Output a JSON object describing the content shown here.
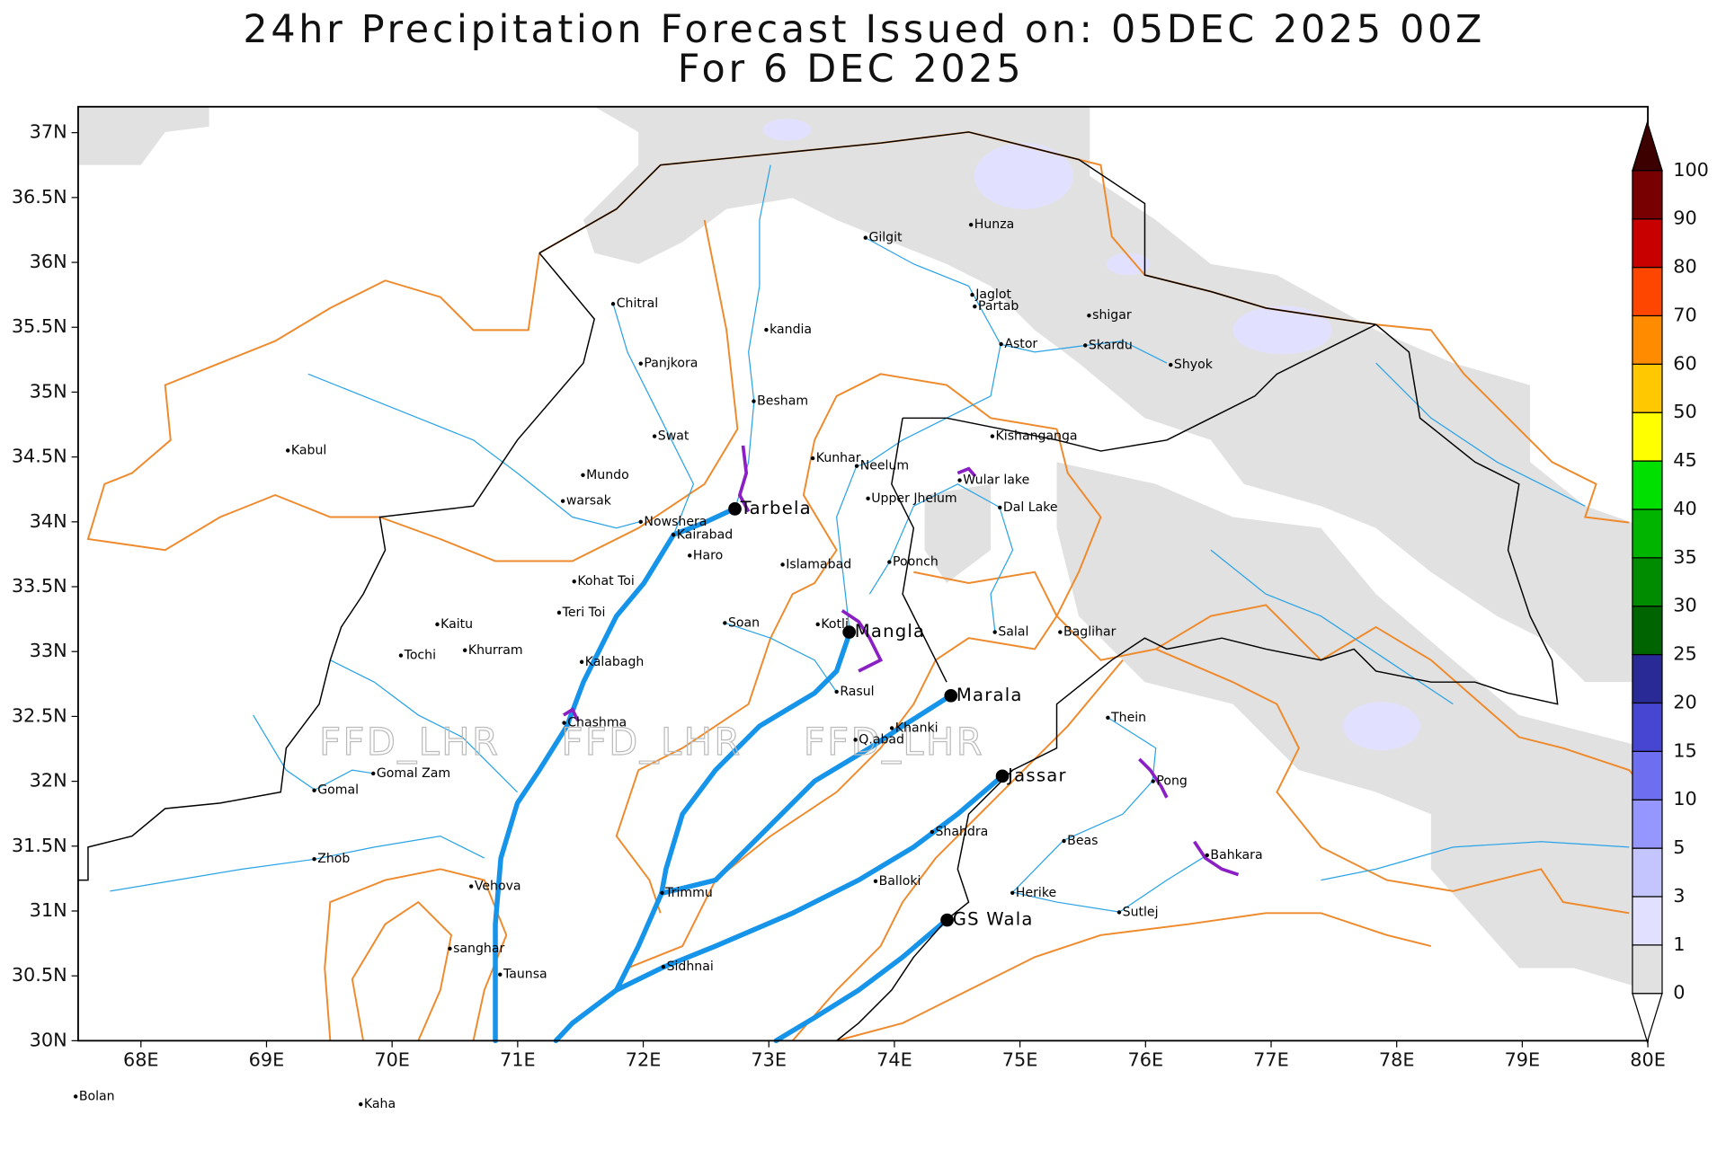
{
  "title": "24hr Precipitation Forecast Issued on:  05DEC 2025 00Z",
  "subtitle": "For 6 DEC 2025",
  "watermark": "FFD_LHR",
  "map": {
    "lonlim": [
      67.5,
      80
    ],
    "latlim": [
      30,
      37.2
    ],
    "lon_ticks": [
      {
        "value": 68,
        "label": "68E"
      },
      {
        "value": 69,
        "label": "69E"
      },
      {
        "value": 70,
        "label": "70E"
      },
      {
        "value": 71,
        "label": "71E"
      },
      {
        "value": 72,
        "label": "72E"
      },
      {
        "value": 73,
        "label": "73E"
      },
      {
        "value": 74,
        "label": "74E"
      },
      {
        "value": 75,
        "label": "75E"
      },
      {
        "value": 76,
        "label": "76E"
      },
      {
        "value": 77,
        "label": "77E"
      },
      {
        "value": 78,
        "label": "78E"
      },
      {
        "value": 79,
        "label": "79E"
      },
      {
        "value": 80,
        "label": "80E"
      }
    ],
    "lat_ticks": [
      {
        "value": 30,
        "label": "30N"
      },
      {
        "value": 30.5,
        "label": "30.5N"
      },
      {
        "value": 31,
        "label": "31N"
      },
      {
        "value": 31.5,
        "label": "31.5N"
      },
      {
        "value": 32,
        "label": "32N"
      },
      {
        "value": 32.5,
        "label": "32.5N"
      },
      {
        "value": 33,
        "label": "33N"
      },
      {
        "value": 33.5,
        "label": "33.5N"
      },
      {
        "value": 34,
        "label": "34N"
      },
      {
        "value": 34.5,
        "label": "34.5N"
      },
      {
        "value": 35,
        "label": "35N"
      },
      {
        "value": 35.5,
        "label": "35.5N"
      },
      {
        "value": 36,
        "label": "36N"
      },
      {
        "value": 36.5,
        "label": "36.5N"
      },
      {
        "value": 37,
        "label": "37N"
      }
    ]
  },
  "colorbar": {
    "levels": [
      0,
      1,
      3,
      5,
      10,
      15,
      20,
      25,
      30,
      35,
      40,
      45,
      50,
      60,
      70,
      80,
      90,
      100
    ],
    "colors": [
      "#ffffff",
      "#e1e1e1",
      "#e1e1ff",
      "#c4c4ff",
      "#9696ff",
      "#6e6ef0",
      "#4646d2",
      "#2a2a96",
      "#006400",
      "#008c00",
      "#00b400",
      "#00e000",
      "#ffff00",
      "#ffc800",
      "#ff8c00",
      "#ff4600",
      "#c80000",
      "#780000",
      "#3c0000"
    ]
  },
  "stations": [
    {
      "name": "Bolan",
      "lon": 67.48,
      "lat": 29.57,
      "major": false
    },
    {
      "name": "Kaha",
      "lon": 69.75,
      "lat": 29.51,
      "major": false
    },
    {
      "name": "Chitral",
      "lon": 71.76,
      "lat": 35.68,
      "major": false
    },
    {
      "name": "Kabul",
      "lon": 69.17,
      "lat": 34.55,
      "major": false
    },
    {
      "name": "Panjkora",
      "lon": 71.98,
      "lat": 35.22,
      "major": false
    },
    {
      "name": "Swat",
      "lon": 72.09,
      "lat": 34.66,
      "major": false
    },
    {
      "name": "Mundo",
      "lon": 71.52,
      "lat": 34.36,
      "major": false
    },
    {
      "name": "warsak",
      "lon": 71.36,
      "lat": 34.16,
      "major": false
    },
    {
      "name": "Nowshera",
      "lon": 71.98,
      "lat": 34.0,
      "major": false
    },
    {
      "name": "Tarbela",
      "lon": 72.73,
      "lat": 34.1,
      "major": true
    },
    {
      "name": "Kairabad",
      "lon": 72.24,
      "lat": 33.9,
      "major": false
    },
    {
      "name": "Haro",
      "lon": 72.37,
      "lat": 33.74,
      "major": false
    },
    {
      "name": "Kohat Toi",
      "lon": 71.45,
      "lat": 33.54,
      "major": false
    },
    {
      "name": "Teri Toi",
      "lon": 71.33,
      "lat": 33.3,
      "major": false
    },
    {
      "name": "Kaitu",
      "lon": 70.36,
      "lat": 33.21,
      "major": false
    },
    {
      "name": "Khurram",
      "lon": 70.58,
      "lat": 33.01,
      "major": false
    },
    {
      "name": "Tochi",
      "lon": 70.07,
      "lat": 32.97,
      "major": false
    },
    {
      "name": "Kalabagh",
      "lon": 71.51,
      "lat": 32.92,
      "major": false
    },
    {
      "name": "Chashma",
      "lon": 71.37,
      "lat": 32.45,
      "major": false
    },
    {
      "name": "Gomal Zam",
      "lon": 69.85,
      "lat": 32.06,
      "major": false
    },
    {
      "name": "Gomal",
      "lon": 69.38,
      "lat": 31.93,
      "major": false
    },
    {
      "name": "Zhob",
      "lon": 69.38,
      "lat": 31.4,
      "major": false
    },
    {
      "name": "Vehova",
      "lon": 70.63,
      "lat": 31.19,
      "major": false
    },
    {
      "name": "sanghar",
      "lon": 70.46,
      "lat": 30.71,
      "major": false
    },
    {
      "name": "Taunsa",
      "lon": 70.86,
      "lat": 30.51,
      "major": false
    },
    {
      "name": "Trimmu",
      "lon": 72.15,
      "lat": 31.14,
      "major": false
    },
    {
      "name": "Sidhnai",
      "lon": 72.16,
      "lat": 30.57,
      "major": false
    },
    {
      "name": "Soan",
      "lon": 72.65,
      "lat": 33.22,
      "major": false
    },
    {
      "name": "Islamabad",
      "lon": 73.11,
      "lat": 33.67,
      "major": false
    },
    {
      "name": "kandia",
      "lon": 72.98,
      "lat": 35.48,
      "major": false
    },
    {
      "name": "Besham",
      "lon": 72.88,
      "lat": 34.93,
      "major": false
    },
    {
      "name": "Kunhar",
      "lon": 73.35,
      "lat": 34.49,
      "major": false
    },
    {
      "name": "Neelum",
      "lon": 73.7,
      "lat": 34.43,
      "major": false
    },
    {
      "name": "Upper Jhelum",
      "lon": 73.79,
      "lat": 34.18,
      "major": false
    },
    {
      "name": "Poonch",
      "lon": 73.96,
      "lat": 33.69,
      "major": false
    },
    {
      "name": "Kotli",
      "lon": 73.39,
      "lat": 33.21,
      "major": false
    },
    {
      "name": "Mangla",
      "lon": 73.64,
      "lat": 33.15,
      "major": true
    },
    {
      "name": "Rasul",
      "lon": 73.54,
      "lat": 32.69,
      "major": false
    },
    {
      "name": "Marala",
      "lon": 74.45,
      "lat": 32.66,
      "major": true
    },
    {
      "name": "Khanki",
      "lon": 73.98,
      "lat": 32.41,
      "major": false
    },
    {
      "name": "Q.abad",
      "lon": 73.69,
      "lat": 32.32,
      "major": false
    },
    {
      "name": "Jassar",
      "lon": 74.86,
      "lat": 32.04,
      "major": true
    },
    {
      "name": "Shahdra",
      "lon": 74.3,
      "lat": 31.61,
      "major": false
    },
    {
      "name": "Balloki",
      "lon": 73.85,
      "lat": 31.23,
      "major": false
    },
    {
      "name": "GS Wala",
      "lon": 74.42,
      "lat": 30.93,
      "major": true
    },
    {
      "name": "Herike",
      "lon": 74.94,
      "lat": 31.14,
      "major": false
    },
    {
      "name": "Sutlej",
      "lon": 75.79,
      "lat": 30.99,
      "major": false
    },
    {
      "name": "Beas",
      "lon": 75.35,
      "lat": 31.54,
      "major": false
    },
    {
      "name": "Bahkara",
      "lon": 76.49,
      "lat": 31.43,
      "major": false
    },
    {
      "name": "Pong",
      "lon": 76.06,
      "lat": 32.0,
      "major": false
    },
    {
      "name": "Thein",
      "lon": 75.7,
      "lat": 32.49,
      "major": false
    },
    {
      "name": "Salal",
      "lon": 74.8,
      "lat": 33.15,
      "major": false
    },
    {
      "name": "Baglihar",
      "lon": 75.32,
      "lat": 33.15,
      "major": false
    },
    {
      "name": "Dal Lake",
      "lon": 74.84,
      "lat": 34.11,
      "major": false
    },
    {
      "name": "Wular lake",
      "lon": 74.52,
      "lat": 34.32,
      "major": false
    },
    {
      "name": "Kishanganga",
      "lon": 74.78,
      "lat": 34.66,
      "major": false
    },
    {
      "name": "Astor",
      "lon": 74.85,
      "lat": 35.37,
      "major": false
    },
    {
      "name": "Jaglot",
      "lon": 74.62,
      "lat": 35.75,
      "major": false
    },
    {
      "name": "Partab",
      "lon": 74.64,
      "lat": 35.66,
      "major": false
    },
    {
      "name": "Gilgit",
      "lon": 73.77,
      "lat": 36.19,
      "major": false
    },
    {
      "name": "Hunza",
      "lon": 74.61,
      "lat": 36.29,
      "major": false
    },
    {
      "name": "shigar",
      "lon": 75.55,
      "lat": 35.59,
      "major": false
    },
    {
      "name": "Skardu",
      "lon": 75.52,
      "lat": 35.36,
      "major": false
    },
    {
      "name": "Shyok",
      "lon": 76.2,
      "lat": 35.21,
      "major": false
    }
  ]
}
